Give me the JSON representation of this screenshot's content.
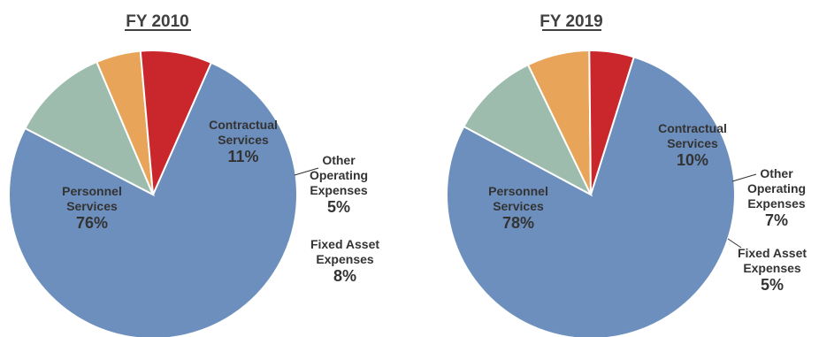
{
  "chart_data": [
    {
      "type": "pie",
      "title": "FY 2010",
      "slices": [
        {
          "label": [
            "Personnel",
            "Services"
          ],
          "value": 76,
          "value_label": "76%"
        },
        {
          "label": [
            "Contractual",
            "Services"
          ],
          "value": 11,
          "value_label": "11%"
        },
        {
          "label": [
            "Other",
            "Operating",
            "Expenses"
          ],
          "value": 5,
          "value_label": "5%"
        },
        {
          "label": [
            "Fixed Asset",
            "Expenses"
          ],
          "value": 8,
          "value_label": "8%"
        }
      ]
    },
    {
      "type": "pie",
      "title": "FY 2019",
      "slices": [
        {
          "label": [
            "Personnel",
            "Services"
          ],
          "value": 78,
          "value_label": "78%"
        },
        {
          "label": [
            "Contractual",
            "Services"
          ],
          "value": 10,
          "value_label": "10%"
        },
        {
          "label": [
            "Other",
            "Operating",
            "Expenses"
          ],
          "value": 7,
          "value_label": "7%"
        },
        {
          "label": [
            "Fixed Asset",
            "Expenses"
          ],
          "value": 5,
          "value_label": "5%"
        }
      ]
    }
  ],
  "colors": {
    "personnel": "#6d8fbd",
    "contractual": "#9dbcae",
    "other_operating": "#e8a55a",
    "fixed_asset": "#c9272b"
  }
}
